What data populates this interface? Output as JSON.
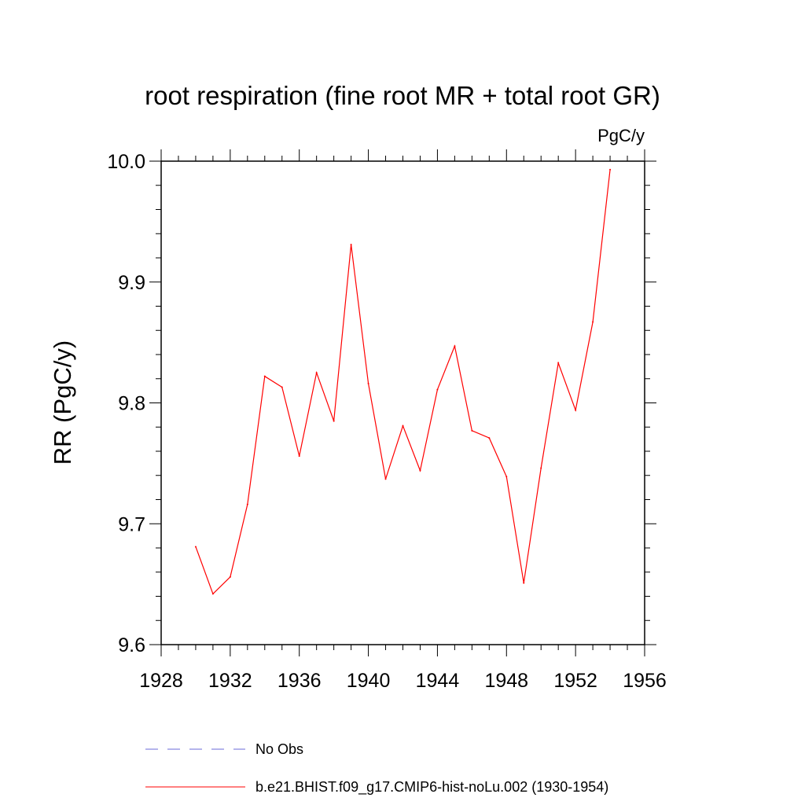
{
  "chart_data": {
    "type": "line",
    "title": "root respiration (fine root MR + total root GR)",
    "units_label": "PgC/y",
    "ylabel": "RR  (PgC/y)",
    "xlabel": "",
    "xlim": [
      1928,
      1956
    ],
    "ylim": [
      9.6,
      10.0
    ],
    "x_ticks": [
      "1928",
      "1932",
      "1936",
      "1940",
      "1944",
      "1948",
      "1952",
      "1956"
    ],
    "y_ticks": [
      "9.6",
      "9.7",
      "9.8",
      "9.9",
      "10.0"
    ],
    "grid": false,
    "legend_position": "bottom",
    "series": [
      {
        "name": "No Obs",
        "color": "#6a6ad8",
        "style": "dashed",
        "x": [],
        "y": []
      },
      {
        "name": "b.e21.BHIST.f09_g17.CMIP6-hist-noLu.002 (1930-1954)",
        "color": "#ff0000",
        "style": "solid",
        "x": [
          1930,
          1931,
          1932,
          1933,
          1934,
          1935,
          1936,
          1937,
          1938,
          1939,
          1940,
          1941,
          1942,
          1943,
          1944,
          1945,
          1946,
          1947,
          1948,
          1949,
          1950,
          1951,
          1952,
          1953,
          1954
        ],
        "y": [
          9.681,
          9.642,
          9.656,
          9.716,
          9.822,
          9.813,
          9.756,
          9.825,
          9.785,
          9.931,
          9.816,
          9.737,
          9.781,
          9.744,
          9.811,
          9.847,
          9.777,
          9.771,
          9.739,
          9.651,
          9.746,
          9.833,
          9.794,
          9.867,
          9.993
        ]
      }
    ]
  }
}
